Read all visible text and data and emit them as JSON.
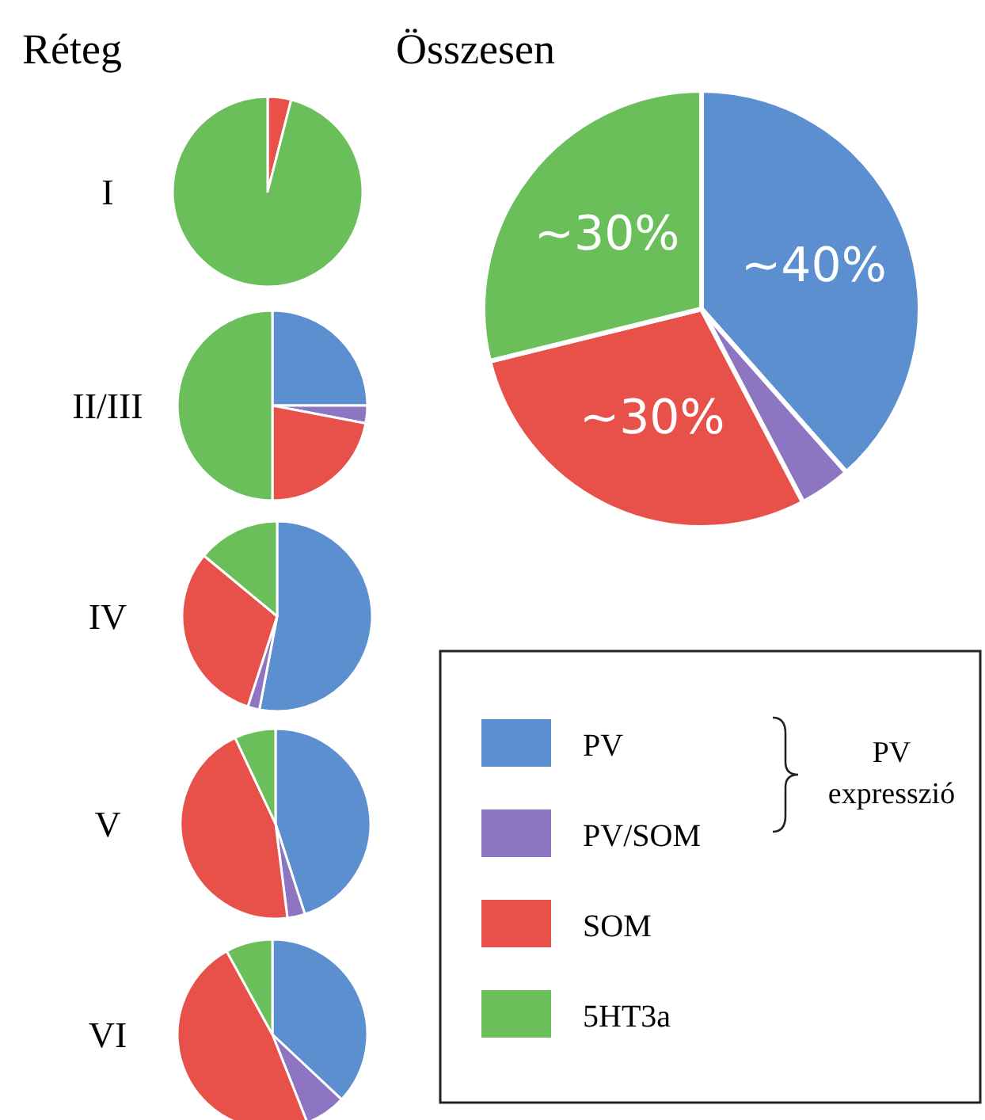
{
  "chart_data": [
    {
      "type": "pie",
      "title": "I",
      "annotations": [
        "Réteg"
      ],
      "categories": [
        null,
        null,
        null,
        null
      ],
      "values": [
        0,
        0,
        4,
        96
      ],
      "colors": [
        "#5b8fd0",
        "#8e75c2",
        "#e8504a",
        "#6abf5a"
      ]
    },
    {
      "type": "pie",
      "title": "II/III",
      "categories": [
        null,
        null,
        null,
        null
      ],
      "values": [
        25,
        3,
        22,
        50
      ],
      "colors": [
        "#5b8fd0",
        "#8e75c2",
        "#e8504a",
        "#6abf5a"
      ]
    },
    {
      "type": "pie",
      "title": "IV",
      "categories": [
        null,
        null,
        null,
        null
      ],
      "values": [
        53,
        2,
        31,
        14
      ],
      "colors": [
        "#5b8fd0",
        "#8e75c2",
        "#e8504a",
        "#6abf5a"
      ]
    },
    {
      "type": "pie",
      "title": "V",
      "categories": [
        null,
        null,
        null,
        null
      ],
      "values": [
        45,
        3,
        45,
        7
      ],
      "colors": [
        "#5b8fd0",
        "#8e75c2",
        "#e8504a",
        "#6abf5a"
      ]
    },
    {
      "type": "pie",
      "title": "VI",
      "categories": [
        null,
        null,
        null,
        null
      ],
      "values": [
        37,
        7,
        48,
        8
      ],
      "colors": [
        "#5b8fd0",
        "#8e75c2",
        "#e8504a",
        "#6abf5a"
      ]
    },
    {
      "type": "pie",
      "title": "Összesen",
      "annotations": [
        "PV expresszió"
      ],
      "legend": "bottom",
      "categories": [
        "PV",
        "PV/SOM",
        "SOM",
        "5HT3a"
      ],
      "values": [
        40,
        4,
        30,
        30
      ],
      "value_labels": [
        "~40%",
        null,
        "~30%",
        "~30%"
      ],
      "colors": [
        "#5b8fd0",
        "#8e75c2",
        "#e8504a",
        "#6abf5a"
      ]
    }
  ]
}
